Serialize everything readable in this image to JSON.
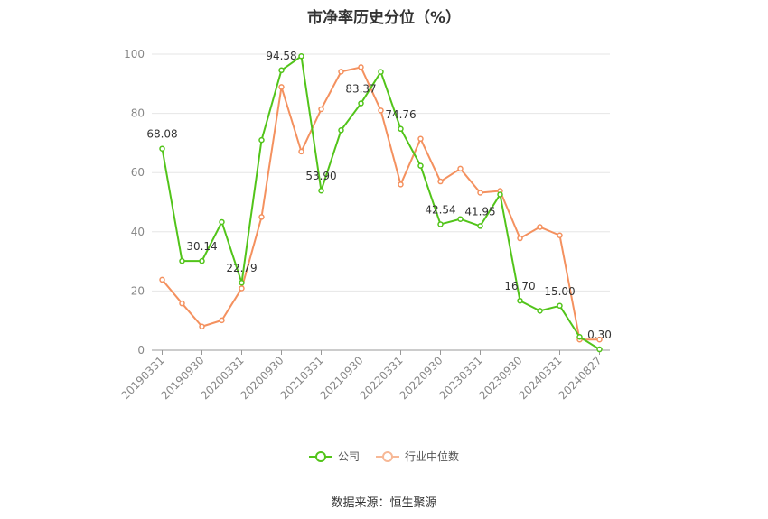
{
  "chart_data": {
    "type": "line",
    "title": "市净率历史分位（%）",
    "ylim": [
      0,
      100
    ],
    "yticks": [
      0,
      20,
      40,
      60,
      80,
      100
    ],
    "grid": true,
    "legend_placement": "bottom-center",
    "x": [
      "20190331",
      "20190630",
      "20190930",
      "20191231",
      "20200331",
      "20200630",
      "20200930",
      "20201231",
      "20210331",
      "20210630",
      "20210930",
      "20211231",
      "20220331",
      "20220630",
      "20220930",
      "20221231",
      "20230331",
      "20230630",
      "20230930",
      "20231231",
      "20240331",
      "20240630",
      "20240827"
    ],
    "xtick_labels": [
      "20190331",
      "20190930",
      "20200331",
      "20200930",
      "20210331",
      "20210930",
      "20220331",
      "20220930",
      "20230331",
      "20230930",
      "20240331",
      "20240827"
    ],
    "series": [
      {
        "name": "公司",
        "color": "#52c41a",
        "values": [
          68.08,
          30.14,
          30.14,
          43.3,
          22.79,
          71.0,
          94.58,
          99.3,
          53.9,
          74.3,
          83.37,
          94.0,
          74.76,
          62.3,
          42.54,
          44.3,
          41.95,
          52.6,
          16.7,
          13.3,
          15.0,
          4.5,
          0.3
        ],
        "labels": {
          "0": "68.08",
          "2": "30.14",
          "4": "22.79",
          "6": "94.58",
          "8": "53.90",
          "10": "83.37",
          "12": "74.76",
          "14": "42.54",
          "16": "41.95",
          "18": "16.70",
          "20": "15.00",
          "22": "0.30"
        }
      },
      {
        "name": "行业中位数",
        "color": "#f4915f",
        "values": [
          23.8,
          15.8,
          8.0,
          10.1,
          20.9,
          45.0,
          88.9,
          67.1,
          81.4,
          94.1,
          95.6,
          81.0,
          56.0,
          71.4,
          57.0,
          61.3,
          53.2,
          53.8,
          37.8,
          41.6,
          38.8,
          3.6,
          3.6
        ]
      }
    ]
  },
  "legend": {
    "company": "公司",
    "industry": "行业中位数"
  },
  "source": "数据来源：恒生聚源"
}
